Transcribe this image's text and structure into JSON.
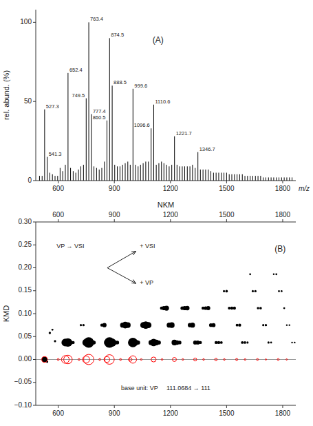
{
  "chart_data": [
    {
      "type": "stem",
      "x_label": "m/z",
      "y_label": "rel. abund. (%)",
      "xlim": [
        480,
        1870
      ],
      "ylim": [
        0,
        108
      ],
      "xticks": [
        600,
        900,
        1200,
        1500,
        1800
      ],
      "yticks": [
        0,
        50,
        100
      ],
      "grid": false,
      "series": [
        {
          "color": "black",
          "x": [
            500,
            514,
            555,
            569,
            583,
            597,
            610,
            624,
            638,
            666,
            680,
            694,
            708,
            721,
            735,
            791,
            805,
            819,
            833,
            847,
            902,
            916,
            930,
            944,
            958,
            972,
            985,
            1013,
            1027,
            1040,
            1054,
            1068,
            1082,
            1124,
            1138,
            1152,
            1165,
            1179,
            1193,
            1207,
            1235,
            1249,
            1263,
            1276,
            1290,
            1304,
            1318,
            1332,
            1360,
            1374,
            1388,
            1402,
            1416,
            1430,
            1444,
            1458,
            1472,
            1486,
            1500,
            1514,
            1528,
            1542,
            1556,
            1570,
            1584,
            1598,
            1612,
            1626,
            1640,
            1654,
            1668,
            1682,
            1696,
            1710,
            1724,
            1738,
            1752,
            1766,
            1780,
            1794,
            1808,
            1822,
            1836,
            1850
          ],
          "values": [
            3,
            3,
            5,
            4,
            3,
            3,
            8,
            6,
            10,
            8,
            6,
            5,
            7,
            9,
            10,
            9,
            8,
            7,
            8,
            12,
            10,
            9,
            9,
            10,
            11,
            12,
            10,
            10,
            9,
            10,
            11,
            12,
            12,
            10,
            11,
            12,
            11,
            10,
            9,
            10,
            10,
            9,
            9,
            9,
            9,
            9,
            10,
            8,
            7,
            7,
            7,
            7,
            6,
            5,
            5,
            5,
            5,
            5,
            5,
            4,
            4,
            4,
            4,
            4,
            4,
            3,
            3,
            3,
            3,
            3,
            3,
            3,
            2,
            2,
            2,
            2,
            2,
            2,
            2,
            2,
            2,
            2,
            2,
            2
          ]
        },
        {
          "color": "black",
          "x": [
            527.3,
            541.3,
            652.4,
            749.5,
            763.4,
            777.4,
            860.5,
            874.5,
            888.5,
            999.6,
            1096.6,
            1110.6,
            1221.7,
            1346.7
          ],
          "values": [
            45,
            15,
            68,
            52,
            100,
            42,
            38,
            90,
            60,
            58,
            33,
            48,
            28,
            18
          ]
        }
      ],
      "annotations": [
        {
          "text": "763.4",
          "x": 763.4,
          "y": 100
        },
        {
          "text": "874.5",
          "x": 874.5,
          "y": 90
        },
        {
          "text": "652.4",
          "x": 652.4,
          "y": 68
        },
        {
          "text": "888.5",
          "x": 888.5,
          "y": 60
        },
        {
          "text": "999.6",
          "x": 999.6,
          "y": 58
        },
        {
          "text": "749.5",
          "x": 749.5,
          "y": 52
        },
        {
          "text": "1110.6",
          "x": 1110.6,
          "y": 48
        },
        {
          "text": "527.3",
          "x": 527.3,
          "y": 45
        },
        {
          "text": "777.4",
          "x": 777.4,
          "y": 42
        },
        {
          "text": "860.5",
          "x": 860.5,
          "y": 38
        },
        {
          "text": "1096.6",
          "x": 1096.6,
          "y": 33
        },
        {
          "text": "1221.7",
          "x": 1221.7,
          "y": 28
        },
        {
          "text": "1346.7",
          "x": 1346.7,
          "y": 18
        },
        {
          "text": "541.3",
          "x": 541.3,
          "y": 15
        },
        {
          "text": "(A)"
        }
      ]
    },
    {
      "type": "scatter",
      "x_label": "NKM",
      "y_label": "KMD",
      "xlim": [
        480,
        1870
      ],
      "ylim": [
        -0.1,
        0.3
      ],
      "xticks": [
        600,
        900,
        1200,
        1500,
        1800
      ],
      "yticks": [
        {
          "value": -0.1,
          "label": "−0.10"
        },
        {
          "value": -0.05,
          "label": "−0.05"
        },
        {
          "value": 0.0,
          "label": "0.00"
        },
        0.05,
        {
          "value": 0.1,
          "label": "0.10"
        },
        0.15,
        {
          "value": 0.2,
          "label": "0.20"
        },
        0.25,
        {
          "value": 0.3,
          "label": "0.30"
        }
      ],
      "grid": false,
      "hline": 0.0,
      "series": [
        {
          "color": "black",
          "marker": "circle",
          "x": [
            527,
            541,
            555,
            569,
            583,
            638,
            652,
            666,
            680,
            721,
            735,
            749,
            763,
            777,
            791,
            833,
            847,
            860,
            874,
            888,
            902,
            916,
            944,
            958,
            972,
            985,
            999,
            1013,
            1027,
            1055,
            1068,
            1082,
            1096,
            1110,
            1124,
            1138,
            1152,
            1165,
            1179,
            1193,
            1207,
            1221,
            1235,
            1249,
            1263,
            1276,
            1290,
            1304,
            1318,
            1332,
            1346,
            1360,
            1374,
            1388,
            1402,
            1416,
            1430,
            1444,
            1458,
            1472,
            1486,
            1500,
            1514,
            1528,
            1542,
            1556,
            1570,
            1584,
            1598,
            1612,
            1626,
            1640,
            1654,
            1668,
            1682,
            1696,
            1710,
            1724,
            1738,
            1752,
            1766,
            1780,
            1794,
            1808,
            1822,
            1836,
            1850,
            1864
          ],
          "values": [
            0.0,
            -0.005,
            0.058,
            0.065,
            0.04,
            0.037,
            0.037,
            0.037,
            0.037,
            0.075,
            0.075,
            0.037,
            0.037,
            0.037,
            0.037,
            0.075,
            0.075,
            0.037,
            0.037,
            0.037,
            0.037,
            0.037,
            0.075,
            0.075,
            0.075,
            0.037,
            0.037,
            0.037,
            0.037,
            0.075,
            0.075,
            0.075,
            0.037,
            0.037,
            0.037,
            0.037,
            0.112,
            0.112,
            0.112,
            0.075,
            0.075,
            0.037,
            0.037,
            0.037,
            0.112,
            0.112,
            0.112,
            0.075,
            0.075,
            0.037,
            0.037,
            0.037,
            0.112,
            0.112,
            0.112,
            0.075,
            0.075,
            0.037,
            0.037,
            0.037,
            0.149,
            0.149,
            0.112,
            0.112,
            0.112,
            0.075,
            0.075,
            0.037,
            0.037,
            0.037,
            0.186,
            0.149,
            0.149,
            0.112,
            0.112,
            0.075,
            0.075,
            0.037,
            0.037,
            0.186,
            0.186,
            0.149,
            0.149,
            0.112,
            0.075,
            0.075,
            0.037,
            0.037
          ],
          "sizes": [
            35,
            5,
            6,
            4,
            5,
            65,
            80,
            22,
            10,
            5,
            6,
            60,
            120,
            42,
            14,
            10,
            20,
            35,
            120,
            75,
            22,
            14,
            27,
            50,
            35,
            18,
            100,
            42,
            18,
            42,
            60,
            42,
            27,
            60,
            35,
            18,
            10,
            20,
            27,
            27,
            35,
            35,
            22,
            14,
            14,
            20,
            22,
            20,
            27,
            18,
            18,
            10,
            10,
            14,
            18,
            14,
            18,
            10,
            10,
            8,
            5,
            7,
            8,
            10,
            10,
            8,
            10,
            8,
            7,
            5,
            4,
            5,
            6,
            6,
            7,
            5,
            6,
            5,
            4,
            3,
            4,
            4,
            4,
            4,
            3,
            3,
            3,
            3
          ]
        },
        {
          "color": "red",
          "marker": "circle-open",
          "x": [
            527,
            638,
            652,
            749,
            763,
            860,
            874,
            985,
            999,
            1110,
            1221,
            1332,
            1443,
            1554,
            1665,
            1776,
            600,
            711,
            822,
            933,
            1044,
            1155,
            1266,
            1377,
            1488,
            1599,
            1710,
            1821
          ],
          "values": [
            0.0,
            0.0,
            0.0,
            0.0,
            0.0,
            0.0,
            0.0,
            0.0,
            0.0,
            0.0,
            0.0,
            0.0,
            0.0,
            0.0,
            0.0,
            0.0,
            0.0,
            0.0,
            0.0,
            0.0,
            0.0,
            0.0,
            0.0,
            0.0,
            0.0,
            0.0,
            0.0,
            0.0
          ],
          "sizes": [
            35,
            65,
            80,
            55,
            115,
            35,
            100,
            14,
            60,
            27,
            18,
            10,
            7,
            5,
            4,
            4,
            4,
            4,
            4,
            4,
            3,
            3,
            3,
            3,
            3,
            3,
            2,
            2
          ]
        }
      ],
      "annotations": [
        {
          "text": "VP → VSI"
        },
        {
          "text": "+ VSI"
        },
        {
          "text": "+ VP"
        },
        {
          "text": "(B)"
        },
        {
          "text": "base unit: VP     111.0684 → 111"
        }
      ]
    }
  ]
}
